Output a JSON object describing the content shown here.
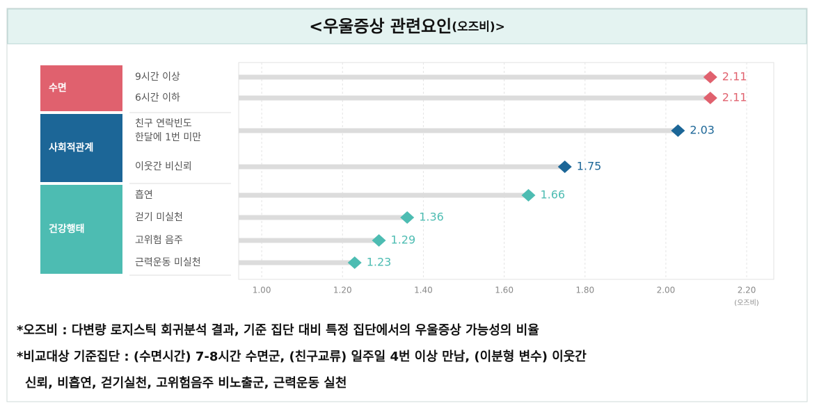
{
  "chart_data": {
    "type": "lollipop",
    "title": "<우울증상 관련요인",
    "title_suffix": "(오즈비)>",
    "x_unit": "(오즈비)",
    "xlim": [
      0.943,
      2.267
    ],
    "xticks": [
      {
        "value": 1.0,
        "label": "1.00"
      },
      {
        "value": 1.2,
        "label": "1.20"
      },
      {
        "value": 1.4,
        "label": "1.40"
      },
      {
        "value": 1.6,
        "label": "1.60"
      },
      {
        "value": 1.8,
        "label": "1.80"
      },
      {
        "value": 2.0,
        "label": "2.00"
      },
      {
        "value": 2.2,
        "label": "2.20"
      }
    ],
    "grid": true,
    "groups": [
      {
        "name": "수면",
        "color": "#e0616e",
        "categories": [
          [
            "9시간 이상"
          ],
          [
            "6시간 이하"
          ]
        ],
        "values": [
          2.11,
          2.11
        ]
      },
      {
        "name": "사회적관계",
        "color": "#1c6697",
        "categories": [
          [
            "친구 연락빈도",
            "한달에 1번 미만"
          ],
          [
            "이웃간 비신뢰"
          ]
        ],
        "values": [
          2.03,
          1.75
        ]
      },
      {
        "name": "건강행태",
        "color": "#4dbcb2",
        "categories": [
          [
            "흡연"
          ],
          [
            "걷기 미실천"
          ],
          [
            "고위험 음주"
          ],
          [
            "근력운동 미실천"
          ]
        ],
        "values": [
          1.66,
          1.36,
          1.29,
          1.23
        ]
      }
    ]
  },
  "notes": [
    "*오즈비 : 다변량 로지스틱 회귀분석 결과, 기준 집단 대비 특정 집단에서의 우울증상 가능성의 비율",
    "*비교대상 기준집단 : (수면시간) 7-8시간 수면군, (친구교류) 일주일 4번 이상 만남, (이분형 변수) 이웃간",
    "신뢰, 비흡연, 걷기실천, 고위험음주 비노출군, 근력운동 실천"
  ]
}
